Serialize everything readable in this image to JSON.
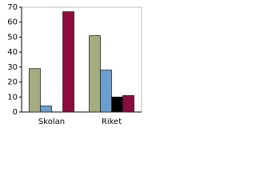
{
  "chart_data": {
    "type": "bar",
    "categories": [
      "Skolan",
      "Riket"
    ],
    "series": [
      {
        "color": "#a4ad80",
        "values": [
          29,
          51
        ]
      },
      {
        "color": "#6b9fd2",
        "values": [
          4,
          28
        ]
      },
      {
        "color": "#000000",
        "values": [
          0,
          10
        ]
      },
      {
        "color": "#8c0c3c",
        "values": [
          67,
          11
        ]
      }
    ],
    "ylim": [
      0,
      70
    ],
    "yticks": [
      0,
      10,
      20,
      30,
      40,
      50,
      60,
      70
    ]
  }
}
